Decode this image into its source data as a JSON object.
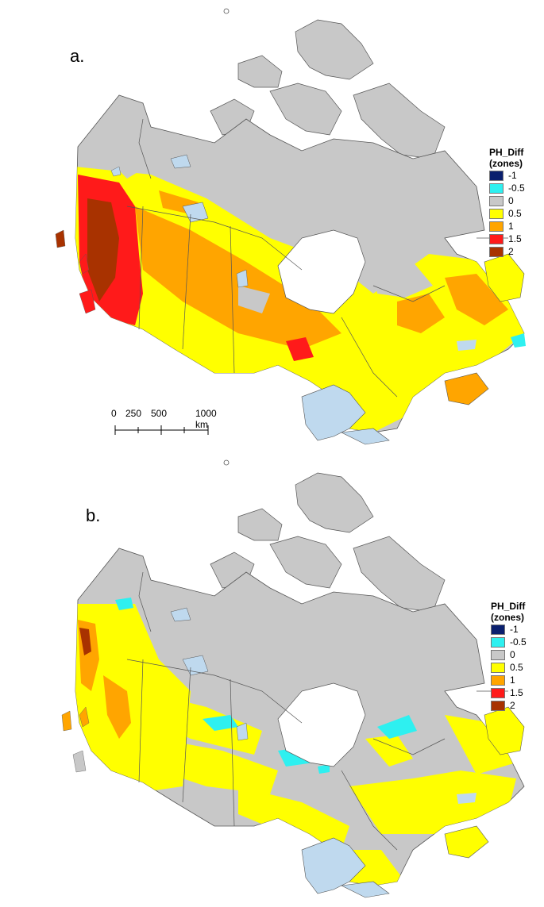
{
  "panels": [
    {
      "label": "a.",
      "legend_title_1": "PH_Diff",
      "legend_title_2": "(zones)"
    },
    {
      "label": "b.",
      "legend_title_1": "PH_Diff",
      "legend_title_2": "(zones)"
    }
  ],
  "legend": [
    {
      "label": "-1",
      "color": "#0a1f6e"
    },
    {
      "label": "-0.5",
      "color": "#2ef0f0"
    },
    {
      "label": "0",
      "color": "#c8c8c8"
    },
    {
      "label": "0.5",
      "color": "#ffff00"
    },
    {
      "label": "1",
      "color": "#ffa500"
    },
    {
      "label": "1.5",
      "color": "#ff1a1a"
    },
    {
      "label": "2",
      "color": "#a83200"
    }
  ],
  "scalebar": {
    "labels": [
      "0",
      "250",
      "500",
      "1000 km"
    ]
  },
  "colors": {
    "water": "#bfd9ee",
    "land_no_change": "#c8c8c8",
    "border": "#555555"
  }
}
